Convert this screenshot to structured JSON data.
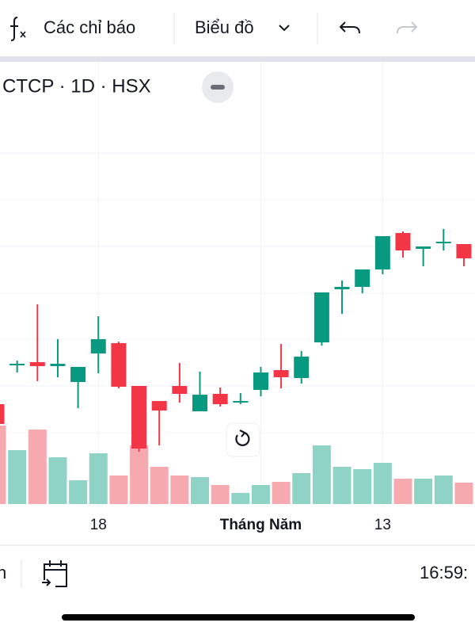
{
  "toolbar": {
    "indicators": "Các chỉ báo",
    "chart_style": "Biểu đồ"
  },
  "chart_data": {
    "type": "candlestick",
    "title": "CTCP · 1D · HSX",
    "categories": [
      null,
      null,
      null,
      null,
      null,
      "18",
      null,
      null,
      null,
      null,
      null,
      null,
      null,
      "Tháng Năm",
      null,
      null,
      null,
      null,
      null,
      "13",
      null,
      null,
      null,
      null
    ],
    "open": [
      130,
      180,
      183,
      178,
      158,
      194,
      207,
      153,
      134,
      153,
      121,
      143,
      132,
      148,
      173,
      163,
      208,
      275,
      278,
      300,
      346,
      326,
      333,
      332
    ],
    "high": [
      142,
      185,
      256,
      212,
      177,
      241,
      209,
      153,
      134,
      182,
      171,
      151,
      144,
      177,
      206,
      197,
      271,
      286,
      300,
      342,
      348,
      329,
      351,
      332
    ],
    "low": [
      100,
      170,
      159,
      164,
      125,
      169,
      150,
      70,
      78,
      132,
      121,
      127,
      130,
      140,
      150,
      156,
      204,
      244,
      270,
      294,
      315,
      304,
      324,
      304
    ],
    "close": [
      105,
      181,
      178,
      181,
      177,
      212,
      152,
      74,
      122,
      143,
      142,
      130,
      134,
      170,
      164,
      190,
      271,
      278,
      300,
      342,
      324,
      329,
      335,
      314
    ],
    "volume": [
      99,
      68,
      94,
      59,
      30,
      64,
      36,
      74,
      47,
      36,
      34,
      24,
      14,
      24,
      28,
      39,
      74,
      47,
      44,
      52,
      32,
      32,
      36,
      27
    ],
    "ylim": [
      0,
      562
    ],
    "yticks": [
      94,
      153,
      212,
      270,
      329,
      388,
      447
    ],
    "volume_lim": [
      0,
      200
    ],
    "grid": true,
    "up_color": "#089981",
    "down_color": "#f23645",
    "volume_up_color": "#8fd3c6",
    "volume_down_color": "#f7a9b0"
  },
  "footer": {
    "range_label": "n",
    "time": "16:59:"
  }
}
